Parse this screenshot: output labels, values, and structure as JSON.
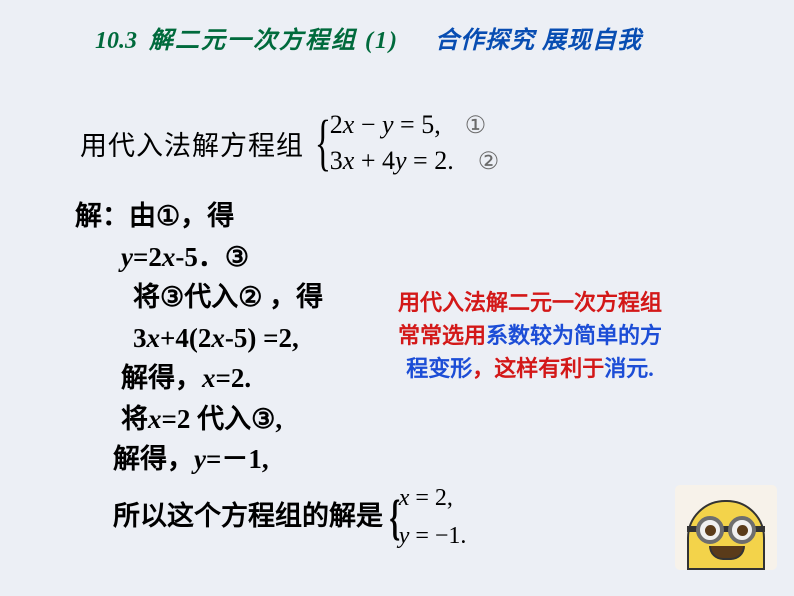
{
  "colors": {
    "background": "#eceff5",
    "green": "#006a3c",
    "blue": "#084db2",
    "red": "#d31818",
    "highlight_blue": "#1c4dd6",
    "text": "#1a1a1a",
    "circled_gray": "#6a6a6a"
  },
  "fonts": {
    "body_size": 27,
    "header_size": 24,
    "note_size": 22,
    "equation_size": 26
  },
  "header": {
    "section_number": "10.3",
    "section_title": "解二元一次方程组 (1)",
    "subtitle": "合作探究 展现自我"
  },
  "problem": {
    "lead": "用代入法解方程组",
    "eq1": "2x − y = 5,",
    "eq2": "3x + 4y = 2.",
    "mark1": "①",
    "mark2": "②"
  },
  "solution": {
    "l1_a": "解：由",
    "l1_b": "①",
    "l1_c": "，得",
    "l2_a": "y",
    "l2_b": "=2",
    "l2_c": "x",
    "l2_d": "-5．",
    "l2_e": "③",
    "l3_a": "将",
    "l3_b": "③",
    "l3_c": "代入",
    "l3_d": "②",
    "l3_e": " ，得",
    "l4_a": "3",
    "l4_b": "x",
    "l4_c": "+4(2",
    "l4_d": "x",
    "l4_e": "-5) =2,",
    "l5_a": "解得，",
    "l5_b": "x",
    "l5_c": "=2.",
    "l6_a": "将",
    "l6_b": "x",
    "l6_c": "=2 代入",
    "l6_d": "③",
    "l6_e": ",",
    "l7_a": "解得，",
    "l7_b": "y",
    "l7_c": "=－1,",
    "l8": "所以这个方程组的解是",
    "ans1": "x = 2,",
    "ans2": "y = −1."
  },
  "note": {
    "l1": "用代入法解二元一次方程组",
    "l2a": "常常选用",
    "l2b": "系数较为简单的方",
    "l3a": "程变形",
    "l3b": "，这样有利于",
    "l3c": "消元."
  }
}
